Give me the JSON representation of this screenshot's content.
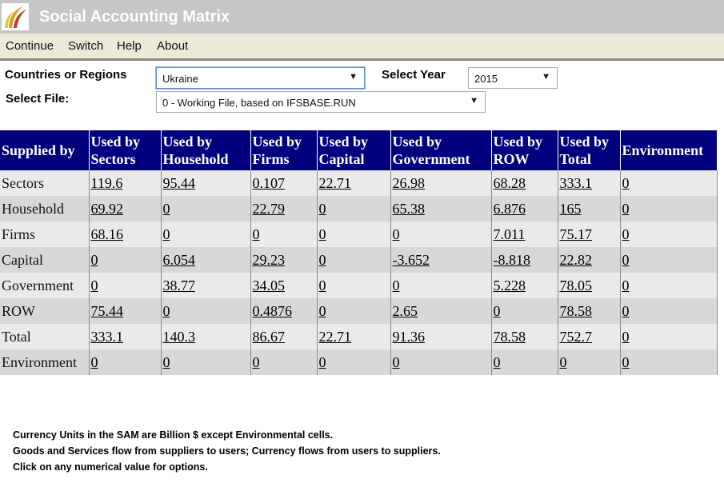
{
  "app": {
    "title": "Social Accounting Matrix"
  },
  "menu": {
    "items": [
      "Continue",
      "Switch",
      "Help",
      "About"
    ]
  },
  "controls": {
    "country_label": "Countries or Regions",
    "country_value": "Ukraine",
    "year_label": "Select Year",
    "year_value": "2015",
    "file_label": "Select File:",
    "file_value": "0 - Working File, based on IFSBASE.RUN"
  },
  "table": {
    "corner": "Supplied by",
    "columns": [
      [
        "Used by",
        "Sectors"
      ],
      [
        "Used by",
        "Household"
      ],
      [
        "Used by",
        "Firms"
      ],
      [
        "Used by",
        "Capital"
      ],
      [
        "Used by",
        "Government"
      ],
      [
        "Used by",
        "ROW"
      ],
      [
        "Used by",
        "Total"
      ],
      [
        "Environment"
      ]
    ],
    "rows": [
      {
        "label": "Sectors",
        "values": [
          "119.6",
          "95.44",
          "0.107",
          "22.71",
          "26.98",
          "68.28",
          "333.1",
          "0"
        ]
      },
      {
        "label": "Household",
        "values": [
          "69.92",
          "0",
          "22.79",
          "0",
          "65.38",
          "6.876",
          "165",
          "0"
        ]
      },
      {
        "label": "Firms",
        "values": [
          "68.16",
          "0",
          "0",
          "0",
          "0",
          "7.011",
          "75.17",
          "0"
        ]
      },
      {
        "label": "Capital",
        "values": [
          "0",
          "6.054",
          "29.23",
          "0",
          "-3.652",
          "-8.818",
          "22.82",
          "0"
        ]
      },
      {
        "label": "Government",
        "values": [
          "0",
          "38.77",
          "34.05",
          "0",
          "0",
          "5.228",
          "78.05",
          "0"
        ]
      },
      {
        "label": "ROW",
        "values": [
          "75.44",
          "0",
          "0.4876",
          "0",
          "2.65",
          "0",
          "78.58",
          "0"
        ]
      },
      {
        "label": "Total",
        "values": [
          "333.1",
          "140.3",
          "86.67",
          "22.71",
          "91.36",
          "78.58",
          "752.7",
          "0"
        ]
      },
      {
        "label": "Environment",
        "values": [
          "0",
          "0",
          "0",
          "0",
          "0",
          "0",
          "0",
          "0"
        ]
      }
    ]
  },
  "notes": [
    "Currency Units in the SAM are Billion $ except Environmental cells.",
    "Goods and Services flow from suppliers to users; Currency flows from users to suppliers.",
    "Click on any numerical value for options."
  ],
  "colors": {
    "header_bg": "#00007f",
    "titlebar_bg": "#c6c6c6",
    "menubar_bg": "#ece9d8"
  }
}
